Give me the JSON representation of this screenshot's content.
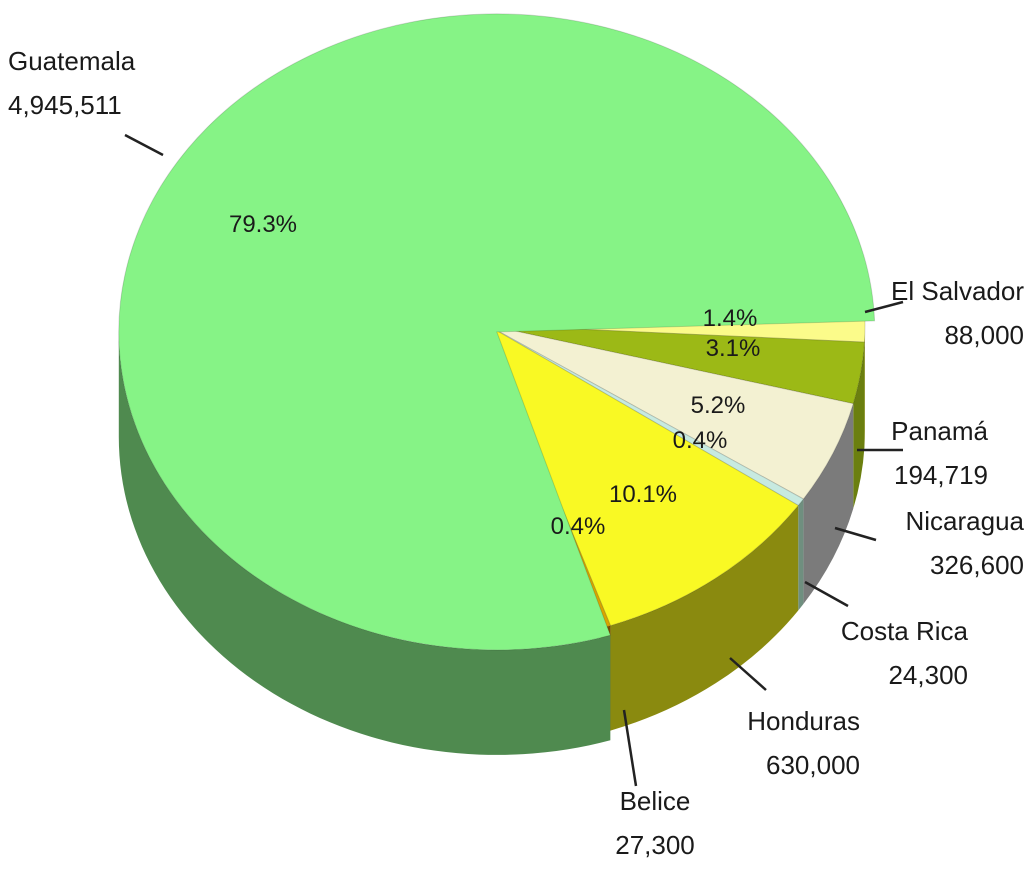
{
  "chart_data": {
    "type": "pie",
    "style": "3d-exploded",
    "slices": [
      {
        "label": "Guatemala",
        "value": 4945511,
        "percent_label": "79.3%",
        "color": "#86f386",
        "side_color": "#4f8a4f"
      },
      {
        "label": "El Salvador",
        "value": 88000,
        "percent_label": "1.4%",
        "color": "#fbfb8a",
        "side_color": "#a8a84a"
      },
      {
        "label": "Panamá",
        "value": 194719,
        "percent_label": "3.1%",
        "color": "#9cb916",
        "side_color": "#6b7f0f"
      },
      {
        "label": "Nicaragua",
        "value": 326600,
        "percent_label": "5.2%",
        "color": "#f3f1d2",
        "side_color": "#7b7b7b"
      },
      {
        "label": "Costa Rica",
        "value": 24300,
        "percent_label": "0.4%",
        "color": "#c7eae0",
        "side_color": "#6f8f7f"
      },
      {
        "label": "Honduras",
        "value": 630000,
        "percent_label": "10.1%",
        "color": "#f9f924",
        "side_color": "#8a8a0f"
      },
      {
        "label": "Belice",
        "value": 27300,
        "percent_label": "0.4%",
        "color": "#d9a400",
        "side_color": "#7a4a00"
      }
    ],
    "value_labels": {
      "Guatemala": "4,945,511",
      "El Salvador": "88,000",
      "Panamá": "194,719",
      "Nicaragua": "326,600",
      "Costa Rica": "24,300",
      "Honduras": "630,000",
      "Belice": "27,300"
    }
  }
}
